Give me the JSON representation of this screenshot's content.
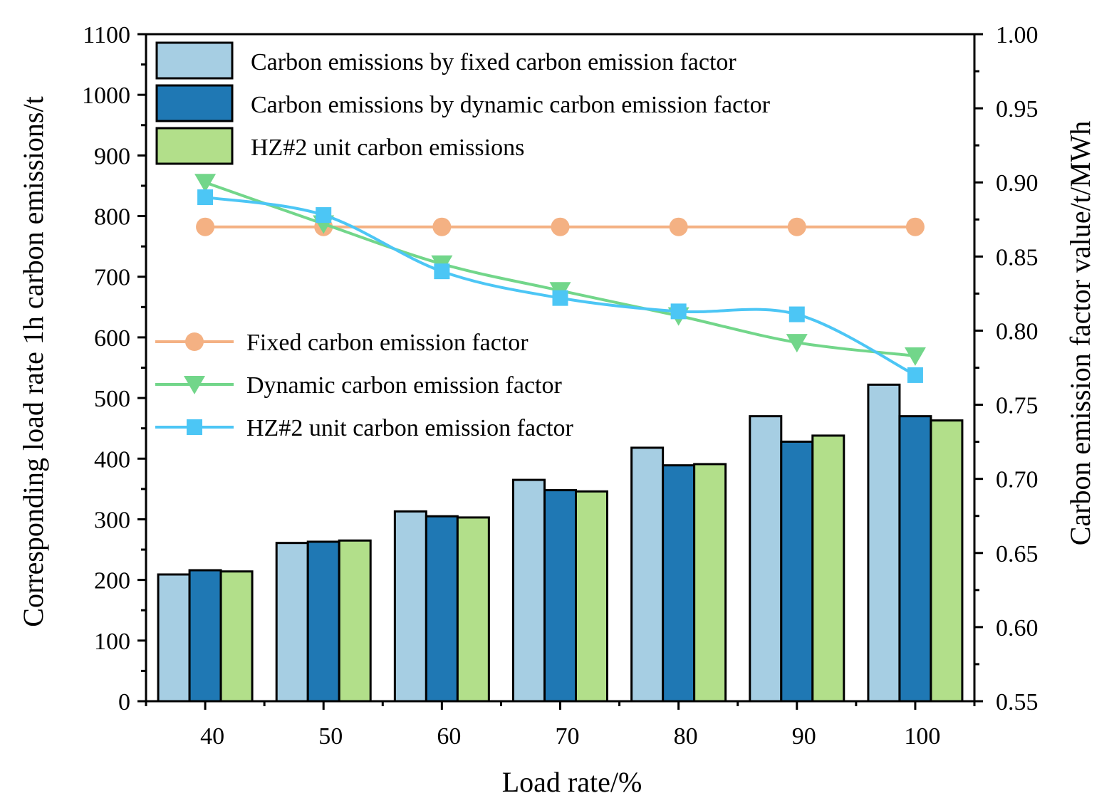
{
  "chart_data": {
    "type": "bar",
    "categories": [
      "40",
      "50",
      "60",
      "70",
      "80",
      "90",
      "100"
    ],
    "xlabel": "Load rate/%",
    "ylabel": "Corresponding load rate 1h carbon emissions/t",
    "y2label": "Carbon emission factor value/t/MWh",
    "ylim": [
      0,
      1100
    ],
    "y2lim": [
      0.55,
      1.0
    ],
    "yticks": [
      "0",
      "100",
      "200",
      "300",
      "400",
      "500",
      "600",
      "700",
      "800",
      "900",
      "1000",
      "1100"
    ],
    "y2ticks": [
      "0.55",
      "0.60",
      "0.65",
      "0.70",
      "0.75",
      "0.80",
      "0.85",
      "0.90",
      "0.95",
      "1.00"
    ],
    "bar_series": [
      {
        "name": "Carbon emissions by fixed carbon emission factor",
        "color": "#a6cee3",
        "values": [
          209,
          261,
          313,
          365,
          418,
          470,
          522
        ]
      },
      {
        "name": "Carbon emissions by dynamic carbon emission factor",
        "color": "#1f78b4",
        "values": [
          216,
          263,
          305,
          348,
          389,
          428,
          470
        ]
      },
      {
        "name": "HZ#2 unit carbon emissions",
        "color": "#b2df8a",
        "values": [
          214,
          265,
          303,
          346,
          391,
          438,
          463
        ]
      }
    ],
    "line_series": [
      {
        "name": "Fixed carbon emission factor",
        "color": "#f4b183",
        "marker": "circle",
        "values": [
          0.87,
          0.87,
          0.87,
          0.87,
          0.87,
          0.87,
          0.87
        ]
      },
      {
        "name": "Dynamic carbon emission factor",
        "color": "#72d68a",
        "marker": "triangle-down",
        "values": [
          0.9,
          0.872,
          0.845,
          0.827,
          0.81,
          0.792,
          0.783
        ]
      },
      {
        "name": "HZ#2 unit carbon emission factor",
        "color": "#4cc6f5",
        "marker": "square",
        "values": [
          0.89,
          0.878,
          0.84,
          0.822,
          0.813,
          0.811,
          0.77
        ]
      }
    ],
    "legend_positions": [
      "top-left",
      "middle-left"
    ]
  }
}
